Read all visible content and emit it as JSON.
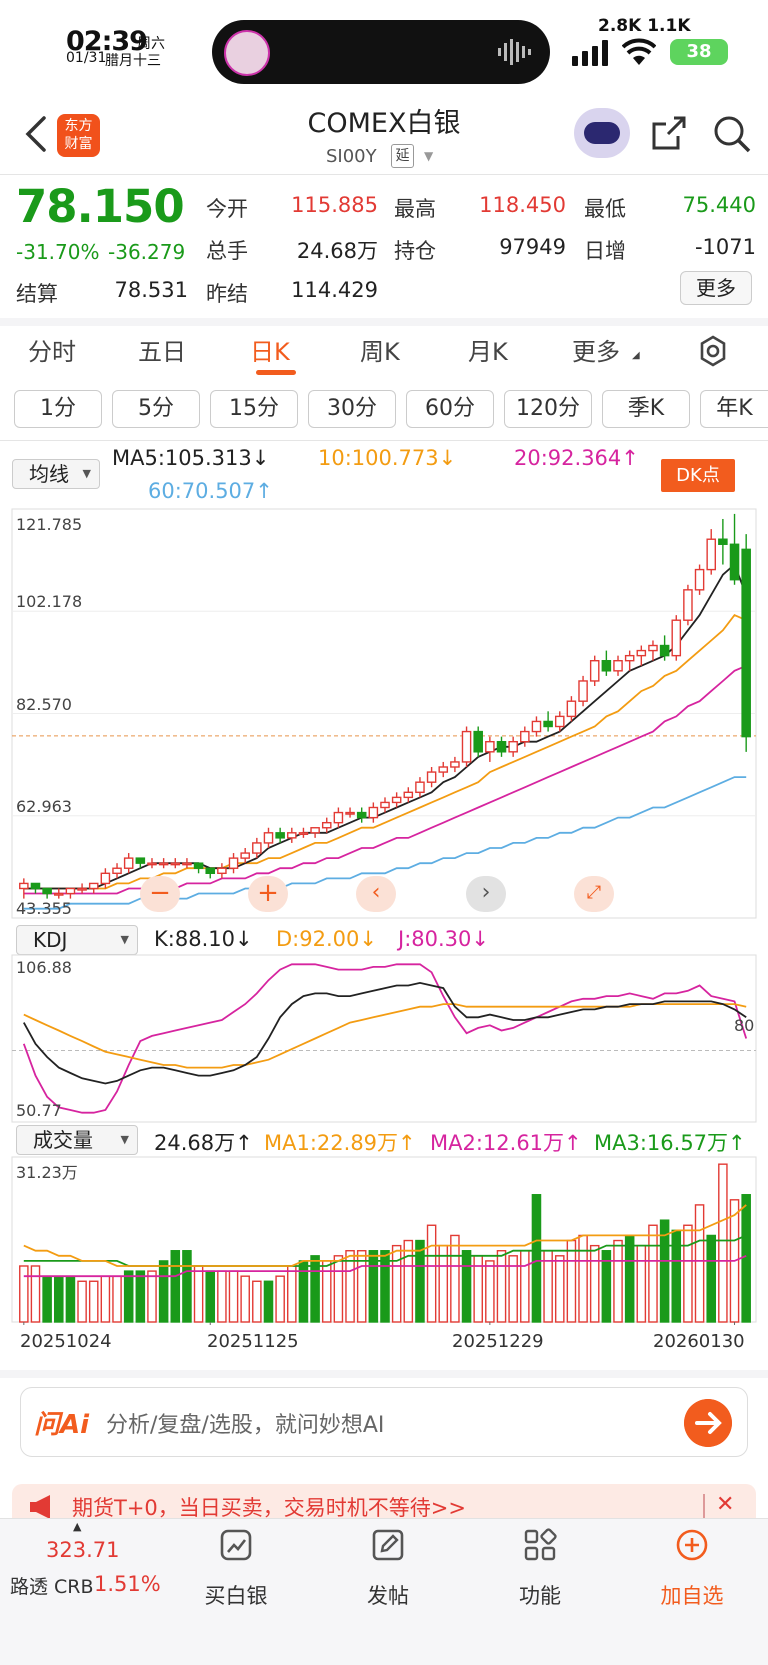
{
  "status": {
    "time": "02:39",
    "weekday": "周六",
    "date": "01/31",
    "lunar": "腊月十三",
    "speed": "2.8K 1.1K",
    "battery": "38"
  },
  "header": {
    "title": "COMEX白银",
    "subtitle": "SI00Y",
    "delay_badge": "延"
  },
  "quote": {
    "price": "78.150",
    "change_pct": "-31.70%",
    "change_abs": "-36.279",
    "today_open_label": "今开",
    "today_open": "115.885",
    "high_label": "最高",
    "high": "118.450",
    "low_label": "最低",
    "low": "75.440",
    "volume_label": "总手",
    "volume": "24.68万",
    "open_interest_label": "持仓",
    "open_interest": "97949",
    "daily_inc_label": "日增",
    "daily_inc": "-1071",
    "settle_label": "结算",
    "settle": "78.531",
    "prev_settle_label": "昨结",
    "prev_settle": "114.429",
    "more_label": "更多"
  },
  "tabs": [
    "分时",
    "五日",
    "日K",
    "周K",
    "月K",
    "更多"
  ],
  "active_tab": "日K",
  "periods": [
    "1分",
    "5分",
    "15分",
    "30分",
    "60分",
    "120分",
    "季K",
    "年K"
  ],
  "main_panel": {
    "selector": "均线",
    "ma5": "MA5:105.313↓",
    "ma10": "10:100.773↓",
    "ma20": "20:92.364↑",
    "ma60": "60:70.507↑",
    "dk_badge": "DK点",
    "y_ticks": [
      "121.785",
      "102.178",
      "82.570",
      "62.963",
      "43.355"
    ]
  },
  "kdj_panel": {
    "selector": "KDJ",
    "k": "K:88.10↓",
    "d": "D:92.00↓",
    "j": "J:80.30↓",
    "y_top": "106.88",
    "y_bottom": "50.77",
    "last_label": "80"
  },
  "volume_panel": {
    "selector": "成交量",
    "vol": "24.68万↑",
    "ma1": "MA1:22.89万↑",
    "ma2": "MA2:12.61万↑",
    "ma3": "MA3:16.57万↑",
    "y_top": "31.23万"
  },
  "dates": [
    "20251024",
    "20251125",
    "20251229",
    "20260130"
  ],
  "ai_bar": {
    "logo": "问Ai",
    "placeholder": "分析/复盘/选股，就问妙想AI"
  },
  "notice": {
    "text": "期货T+0，当日买卖，交易时机不等待>>"
  },
  "bottom_nav": {
    "index_value": "323.71",
    "index_name": "路透 CRB",
    "index_pct": "1.51%",
    "items": [
      "买白银",
      "发帖",
      "功能",
      "加自选"
    ]
  },
  "colors": {
    "up": "#e23a34",
    "down": "#1a9a1a",
    "accent": "#f25c1e",
    "ma5": "#222222",
    "ma10": "#f39c12",
    "ma20": "#d6249f",
    "ma60": "#5dade2"
  },
  "chart_data": {
    "type": "candlestick",
    "title": "COMEX白银 日K",
    "ylim": [
      43.355,
      121.785
    ],
    "x_range": [
      "20251024",
      "20260130"
    ],
    "candles": [
      [
        48,
        50,
        46,
        49
      ],
      [
        49,
        49,
        47,
        48
      ],
      [
        48,
        48,
        46,
        47
      ],
      [
        47,
        48,
        46,
        47
      ],
      [
        47,
        48,
        46,
        48
      ],
      [
        48,
        49,
        47,
        48
      ],
      [
        48,
        49,
        47,
        49
      ],
      [
        49,
        52,
        48,
        51
      ],
      [
        51,
        53,
        50,
        52
      ],
      [
        52,
        55,
        51,
        54
      ],
      [
        54,
        54,
        52,
        53
      ],
      [
        53,
        54,
        52,
        53
      ],
      [
        53,
        54,
        52,
        53
      ],
      [
        53,
        54,
        52,
        53
      ],
      [
        53,
        54,
        52,
        53
      ],
      [
        53,
        53,
        51,
        52
      ],
      [
        52,
        52,
        50,
        51
      ],
      [
        51,
        53,
        50,
        52
      ],
      [
        52,
        55,
        51,
        54
      ],
      [
        54,
        56,
        53,
        55
      ],
      [
        55,
        58,
        54,
        57
      ],
      [
        57,
        60,
        56,
        59
      ],
      [
        59,
        60,
        57,
        58
      ],
      [
        58,
        60,
        57,
        59
      ],
      [
        59,
        60,
        58,
        59
      ],
      [
        59,
        60,
        58,
        60
      ],
      [
        60,
        62,
        59,
        61
      ],
      [
        61,
        64,
        60,
        63
      ],
      [
        63,
        64,
        62,
        63
      ],
      [
        63,
        64,
        61,
        62
      ],
      [
        62,
        65,
        61,
        64
      ],
      [
        64,
        66,
        63,
        65
      ],
      [
        65,
        67,
        64,
        66
      ],
      [
        66,
        68,
        65,
        67
      ],
      [
        67,
        70,
        66,
        69
      ],
      [
        69,
        72,
        68,
        71
      ],
      [
        71,
        73,
        70,
        72
      ],
      [
        72,
        74,
        71,
        73
      ],
      [
        73,
        80,
        72,
        79
      ],
      [
        79,
        80,
        74,
        75
      ],
      [
        75,
        78,
        73,
        77
      ],
      [
        77,
        78,
        74,
        75
      ],
      [
        75,
        78,
        74,
        77
      ],
      [
        77,
        80,
        76,
        79
      ],
      [
        79,
        82,
        78,
        81
      ],
      [
        81,
        83,
        79,
        80
      ],
      [
        80,
        83,
        79,
        82
      ],
      [
        82,
        86,
        81,
        85
      ],
      [
        85,
        90,
        84,
        89
      ],
      [
        89,
        94,
        88,
        93
      ],
      [
        93,
        95,
        90,
        91
      ],
      [
        91,
        94,
        90,
        93
      ],
      [
        93,
        95,
        91,
        94
      ],
      [
        94,
        96,
        92,
        95
      ],
      [
        95,
        97,
        93,
        96
      ],
      [
        96,
        98,
        93,
        94
      ],
      [
        94,
        102,
        93,
        101
      ],
      [
        101,
        108,
        100,
        107
      ],
      [
        107,
        112,
        106,
        111
      ],
      [
        111,
        119,
        110,
        117
      ],
      [
        117,
        121,
        112,
        116
      ],
      [
        116,
        122,
        108,
        109
      ],
      [
        115,
        118,
        75,
        78
      ]
    ],
    "ma5": [
      48,
      48,
      48,
      48,
      48,
      48,
      48,
      49,
      50,
      51,
      52,
      53,
      53,
      53,
      53,
      53,
      52,
      52,
      52,
      53,
      54,
      56,
      57,
      58,
      59,
      59,
      59,
      60,
      61,
      62,
      62,
      63,
      64,
      65,
      66,
      67,
      69,
      70,
      72,
      74,
      75,
      76,
      76,
      77,
      77,
      78,
      79,
      81,
      83,
      85,
      87,
      89,
      91,
      92,
      93,
      94,
      96,
      99,
      102,
      106,
      110,
      112,
      106
    ],
    "ma10": [
      48,
      48,
      48,
      48,
      48,
      48,
      48,
      48,
      49,
      49,
      50,
      50,
      51,
      51,
      52,
      52,
      52,
      52,
      53,
      53,
      53,
      54,
      54,
      55,
      56,
      57,
      57,
      58,
      59,
      60,
      60,
      61,
      62,
      63,
      64,
      65,
      66,
      67,
      68,
      69,
      71,
      72,
      73,
      74,
      75,
      76,
      77,
      78,
      79,
      80,
      82,
      83,
      85,
      87,
      88,
      90,
      91,
      93,
      95,
      97,
      99,
      102,
      101
    ],
    "ma20": [
      47,
      47,
      47,
      47,
      47,
      47,
      47,
      47,
      47,
      48,
      48,
      48,
      48,
      48,
      49,
      49,
      49,
      50,
      50,
      50,
      51,
      51,
      52,
      52,
      53,
      53,
      54,
      54,
      55,
      56,
      56,
      57,
      58,
      58,
      59,
      60,
      61,
      62,
      63,
      64,
      65,
      66,
      67,
      68,
      69,
      70,
      71,
      72,
      73,
      74,
      75,
      76,
      77,
      78,
      79,
      81,
      82,
      84,
      85,
      87,
      89,
      91,
      92
    ],
    "ma60": [
      44,
      44,
      44,
      44,
      45,
      45,
      45,
      45,
      45,
      45,
      46,
      46,
      46,
      46,
      46,
      47,
      47,
      47,
      47,
      48,
      48,
      48,
      48,
      49,
      49,
      49,
      50,
      50,
      50,
      51,
      51,
      51,
      52,
      52,
      53,
      53,
      54,
      54,
      55,
      55,
      56,
      56,
      57,
      57,
      58,
      58,
      59,
      59,
      60,
      60,
      61,
      62,
      62,
      63,
      64,
      64,
      65,
      66,
      67,
      68,
      69,
      70,
      70
    ],
    "kdj_k": [
      86,
      78,
      73,
      69,
      67,
      65,
      64,
      63,
      64,
      66,
      68,
      69,
      69,
      68,
      67,
      66,
      66,
      67,
      68,
      70,
      73,
      80,
      88,
      93,
      96,
      97,
      97,
      96,
      96,
      97,
      98,
      99,
      100,
      100,
      101,
      100,
      99,
      92,
      88,
      88,
      89,
      88,
      87,
      87,
      88,
      88,
      89,
      90,
      91,
      91,
      92,
      92,
      93,
      93,
      93,
      94,
      94,
      94,
      94,
      94,
      93,
      91,
      88
    ],
    "kdj_d": [
      89,
      87,
      85,
      83,
      81,
      79,
      77,
      75,
      74,
      73,
      72,
      71,
      70,
      70,
      69,
      69,
      69,
      69,
      70,
      70,
      71,
      72,
      74,
      76,
      78,
      80,
      82,
      84,
      86,
      87,
      88,
      89,
      90,
      91,
      92,
      92,
      93,
      93,
      92,
      92,
      92,
      92,
      92,
      92,
      92,
      92,
      92,
      92,
      92,
      92,
      92,
      92,
      92,
      93,
      93,
      93,
      93,
      93,
      93,
      93,
      93,
      93,
      92
    ],
    "kdj_j": [
      78,
      66,
      58,
      54,
      53,
      52,
      52,
      53,
      60,
      70,
      79,
      81,
      82,
      83,
      84,
      85,
      86,
      87,
      90,
      93,
      97,
      102,
      106,
      108,
      108,
      108,
      107,
      106,
      106,
      106,
      107,
      107,
      108,
      108,
      108,
      105,
      96,
      88,
      82,
      84,
      85,
      83,
      84,
      86,
      88,
      90,
      92,
      94,
      95,
      95,
      96,
      96,
      97,
      96,
      95,
      97,
      97,
      98,
      100,
      96,
      95,
      94,
      80
    ],
    "volume": [
      11,
      11,
      9,
      9,
      9,
      8,
      8,
      9,
      9,
      10,
      10,
      10,
      12,
      14,
      14,
      11,
      10,
      10,
      10,
      9,
      8,
      8,
      9,
      11,
      12,
      13,
      12,
      13,
      14,
      14,
      14,
      14,
      15,
      16,
      16,
      19,
      15,
      17,
      14,
      13,
      12,
      14,
      13,
      14,
      25,
      14,
      13,
      16,
      17,
      15,
      14,
      16,
      17,
      15,
      19,
      20,
      18,
      19,
      23,
      17,
      31,
      24,
      25
    ],
    "volume_up": [
      true,
      true,
      false,
      false,
      false,
      true,
      true,
      true,
      true,
      false,
      false,
      true,
      false,
      false,
      false,
      true,
      false,
      true,
      true,
      true,
      true,
      false,
      true,
      true,
      false,
      false,
      true,
      true,
      true,
      true,
      false,
      false,
      true,
      true,
      false,
      true,
      true,
      true,
      false,
      true,
      true,
      true,
      true,
      true,
      false,
      true,
      true,
      true,
      true,
      true,
      false,
      true,
      false,
      true,
      true,
      false,
      false,
      true,
      true,
      false,
      true,
      true,
      false
    ],
    "vol_ma1": [
      15,
      14,
      14,
      13,
      13,
      12,
      12,
      12,
      11,
      11,
      11,
      11,
      11,
      11,
      11,
      11,
      11,
      11,
      11,
      11,
      11,
      11,
      11,
      11,
      12,
      12,
      12,
      12,
      13,
      13,
      13,
      13,
      14,
      14,
      14,
      15,
      15,
      15,
      15,
      15,
      15,
      15,
      15,
      15,
      16,
      16,
      16,
      16,
      17,
      17,
      17,
      17,
      17,
      17,
      17,
      17,
      18,
      18,
      18,
      19,
      20,
      21,
      23
    ],
    "vol_ma2": [
      9,
      9,
      9,
      9,
      9,
      9,
      9,
      9,
      9,
      9,
      9,
      9,
      9,
      9,
      10,
      10,
      10,
      10,
      10,
      10,
      10,
      10,
      10,
      10,
      10,
      10,
      10,
      10,
      10,
      11,
      11,
      11,
      11,
      11,
      11,
      11,
      11,
      11,
      11,
      11,
      11,
      11,
      11,
      11,
      12,
      12,
      12,
      12,
      12,
      12,
      12,
      12,
      12,
      12,
      12,
      12,
      12,
      12,
      12,
      12,
      12,
      12,
      13
    ],
    "vol_ma3": [
      12,
      12,
      12,
      12,
      12,
      12,
      12,
      12,
      12,
      11,
      11,
      11,
      11,
      11,
      11,
      11,
      11,
      11,
      11,
      11,
      11,
      11,
      11,
      11,
      11,
      11,
      11,
      12,
      12,
      12,
      12,
      12,
      12,
      13,
      13,
      13,
      13,
      13,
      13,
      13,
      13,
      13,
      14,
      14,
      14,
      14,
      14,
      14,
      14,
      14,
      15,
      15,
      15,
      15,
      15,
      15,
      15,
      15,
      16,
      16,
      16,
      16,
      17
    ]
  }
}
